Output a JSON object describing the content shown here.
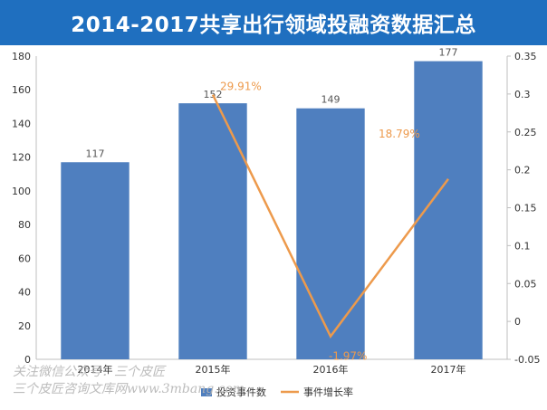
{
  "title": "2014-2017共享出行领域投融资数据汇总",
  "watermark": {
    "line1": "关注微信公众号：三个皮匠",
    "line2": "三个皮匠咨询文库网www.3mbang.com"
  },
  "colors": {
    "title_bg": "#1f6fbf",
    "bar": "#4f7fbf",
    "line": "#ed9a4c"
  },
  "chart_data": {
    "type": "bar",
    "title": "2014-2017共享出行领域投融资数据汇总",
    "categories": [
      "2014年",
      "2015年",
      "2016年",
      "2017年"
    ],
    "series": [
      {
        "name": "投资事件数",
        "type": "bar",
        "axis": "left",
        "values": [
          117,
          152,
          149,
          177
        ],
        "labels": [
          "117",
          "152",
          "149",
          "177"
        ]
      },
      {
        "name": "事件增长率",
        "type": "line",
        "axis": "right",
        "values": [
          0.2991,
          -0.0197,
          0.1879
        ],
        "x": [
          "2015年",
          "2016年",
          "2017年"
        ],
        "labels": [
          "29.91%",
          "-1.97%",
          "18.79%"
        ]
      }
    ],
    "y_left": {
      "min": 0,
      "max": 180,
      "ticks": [
        "0",
        "20",
        "40",
        "60",
        "80",
        "100",
        "120",
        "140",
        "160",
        "180"
      ]
    },
    "y_right": {
      "min": -0.05,
      "max": 0.35,
      "ticks": [
        "-0.05",
        "0",
        "0.05",
        "0.1",
        "0.15",
        "0.2",
        "0.25",
        "0.3",
        "0.35"
      ]
    },
    "grid": false,
    "legend": "bottom"
  }
}
